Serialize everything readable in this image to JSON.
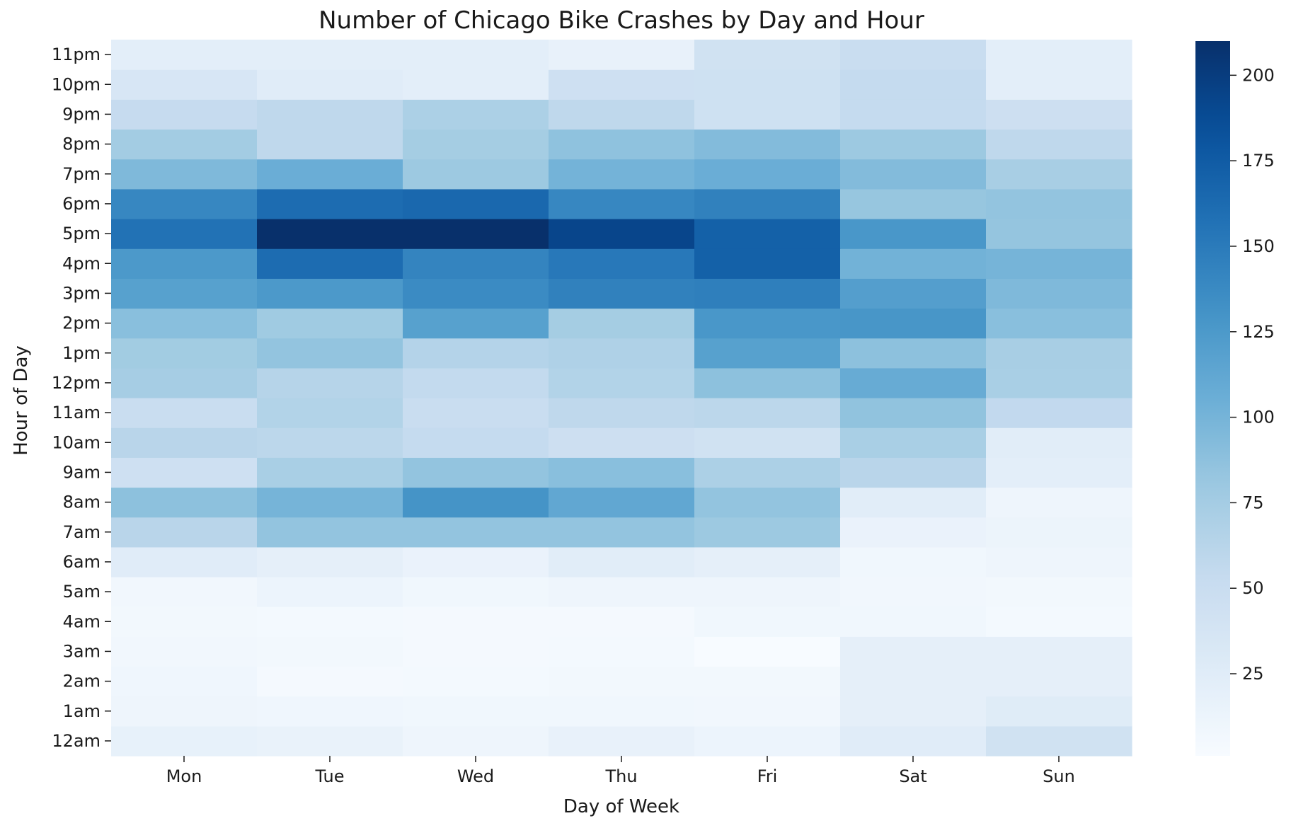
{
  "chart_data": {
    "type": "heatmap",
    "title": "Number of Chicago Bike Crashes by Day and Hour",
    "xlabel": "Day of Week",
    "ylabel": "Hour of Day",
    "x_categories": [
      "Mon",
      "Tue",
      "Wed",
      "Thu",
      "Fri",
      "Sat",
      "Sun"
    ],
    "y_categories": [
      "12am",
      "1am",
      "2am",
      "3am",
      "4am",
      "5am",
      "6am",
      "7am",
      "8am",
      "9am",
      "10am",
      "11am",
      "12pm",
      "1pm",
      "2pm",
      "3pm",
      "4pm",
      "5pm",
      "6pm",
      "7pm",
      "8pm",
      "9pm",
      "10pm",
      "11pm"
    ],
    "values": [
      [
        18,
        16,
        10,
        17,
        12,
        25,
        42
      ],
      [
        10,
        9,
        8,
        8,
        7,
        20,
        26
      ],
      [
        9,
        4,
        5,
        6,
        6,
        20,
        20
      ],
      [
        7,
        6,
        4,
        5,
        1,
        20,
        20
      ],
      [
        6,
        5,
        4,
        4,
        8,
        8,
        5
      ],
      [
        7,
        12,
        8,
        10,
        10,
        7,
        6
      ],
      [
        25,
        20,
        15,
        24,
        20,
        8,
        10
      ],
      [
        62,
        85,
        85,
        85,
        80,
        15,
        13
      ],
      [
        88,
        100,
        130,
        112,
        85,
        24,
        10
      ],
      [
        45,
        72,
        85,
        90,
        70,
        62,
        22
      ],
      [
        62,
        60,
        54,
        46,
        42,
        72,
        24
      ],
      [
        50,
        66,
        50,
        58,
        60,
        86,
        56
      ],
      [
        74,
        64,
        55,
        66,
        88,
        108,
        72
      ],
      [
        77,
        85,
        65,
        68,
        118,
        88,
        73
      ],
      [
        90,
        78,
        118,
        75,
        127,
        128,
        90
      ],
      [
        118,
        125,
        137,
        145,
        147,
        120,
        95
      ],
      [
        125,
        162,
        143,
        152,
        171,
        102,
        100
      ],
      [
        157,
        210,
        210,
        193,
        171,
        127,
        84
      ],
      [
        140,
        162,
        165,
        140,
        145,
        83,
        85
      ],
      [
        95,
        106,
        80,
        101,
        106,
        93,
        73
      ],
      [
        76,
        58,
        75,
        87,
        93,
        80,
        58
      ],
      [
        53,
        58,
        70,
        58,
        44,
        54,
        46
      ],
      [
        35,
        25,
        22,
        45,
        44,
        54,
        22
      ],
      [
        22,
        22,
        22,
        17,
        42,
        50,
        22
      ]
    ],
    "vmin": 1,
    "vmax": 210,
    "colormap": "Blues",
    "colorbar_ticks": [
      25,
      50,
      75,
      100,
      125,
      150,
      175,
      200
    ],
    "grid": false
  }
}
